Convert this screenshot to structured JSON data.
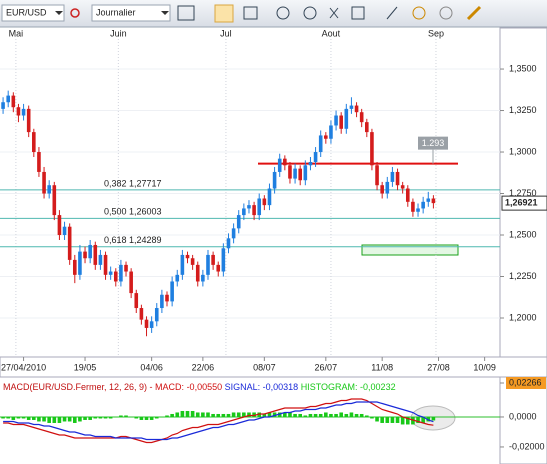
{
  "toolbar": {
    "symbol": "EUR/USD",
    "period": "Journalier"
  },
  "chart_data": [
    {
      "type": "candlestick",
      "up_color": "#1f7fe0",
      "down_color": "#d41c1c",
      "xlim": [
        -0.6,
        97
      ],
      "xticks": [
        {
          "value": 4,
          "label": "27/04/2010"
        },
        {
          "value": 16,
          "label": "19/05"
        },
        {
          "value": 29,
          "label": "04/06"
        },
        {
          "value": 39,
          "label": "22/06"
        },
        {
          "value": 51,
          "label": "08/07"
        },
        {
          "value": 63,
          "label": "26/07"
        },
        {
          "value": 74,
          "label": "11/08"
        },
        {
          "value": 85,
          "label": "27/08"
        },
        {
          "value": 94,
          "label": "10/09"
        }
      ],
      "month_ticks": [
        {
          "value": 2.5,
          "label": "Mai"
        },
        {
          "value": 22.5,
          "label": "Juin"
        },
        {
          "value": 43.5,
          "label": "Jul"
        },
        {
          "value": 64,
          "label": "Aout"
        },
        {
          "value": 84.5,
          "label": "Sep"
        }
      ],
      "ylim": [
        1.1777,
        1.3675
      ],
      "yticks": [
        {
          "value": 1.35,
          "label": "1,3500"
        },
        {
          "value": 1.325,
          "label": "1,3250"
        },
        {
          "value": 1.3,
          "label": "1,3000"
        },
        {
          "value": 1.275,
          "label": "1,2750"
        },
        {
          "value": 1.25,
          "label": "1,2500"
        },
        {
          "value": 1.225,
          "label": "1,2250"
        },
        {
          "value": 1.2,
          "label": "1,2000"
        }
      ],
      "grid": true,
      "last_price": {
        "value": 1.26921,
        "label": "1,26921"
      },
      "fib_levels": [
        {
          "value": 1.27717,
          "label": "0,382 1,27717"
        },
        {
          "value": 1.26003,
          "label": "0,500 1,26003"
        },
        {
          "value": 1.24289,
          "label": "0,618 1,24289"
        }
      ],
      "resistance": {
        "value": 1.293,
        "label": "1.293",
        "color": "#e01010"
      },
      "ohlc": [
        [
          1.326,
          1.333,
          1.323,
          1.33
        ],
        [
          1.33,
          1.337,
          1.327,
          1.334
        ],
        [
          1.334,
          1.336,
          1.324,
          1.327
        ],
        [
          1.327,
          1.329,
          1.318,
          1.322
        ],
        [
          1.322,
          1.329,
          1.319,
          1.326
        ],
        [
          1.326,
          1.328,
          1.309,
          1.312
        ],
        [
          1.312,
          1.314,
          1.297,
          1.3
        ],
        [
          1.3,
          1.303,
          1.285,
          1.288
        ],
        [
          1.288,
          1.291,
          1.272,
          1.275
        ],
        [
          1.275,
          1.283,
          1.272,
          1.28
        ],
        [
          1.28,
          1.282,
          1.259,
          1.262
        ],
        [
          1.262,
          1.265,
          1.247,
          1.25
        ],
        [
          1.25,
          1.258,
          1.247,
          1.255
        ],
        [
          1.255,
          1.257,
          1.232,
          1.235
        ],
        [
          1.235,
          1.238,
          1.221,
          1.226
        ],
        [
          1.226,
          1.244,
          1.223,
          1.24
        ],
        [
          1.24,
          1.243,
          1.233,
          1.236
        ],
        [
          1.236,
          1.247,
          1.233,
          1.244
        ],
        [
          1.244,
          1.246,
          1.229,
          1.232
        ],
        [
          1.232,
          1.241,
          1.229,
          1.238
        ],
        [
          1.238,
          1.24,
          1.223,
          1.226
        ],
        [
          1.226,
          1.231,
          1.223,
          1.228
        ],
        [
          1.228,
          1.23,
          1.219,
          1.222
        ],
        [
          1.222,
          1.235,
          1.219,
          1.232
        ],
        [
          1.232,
          1.234,
          1.225,
          1.228
        ],
        [
          1.228,
          1.23,
          1.212,
          1.215
        ],
        [
          1.215,
          1.217,
          1.203,
          1.206
        ],
        [
          1.206,
          1.208,
          1.196,
          1.199
        ],
        [
          1.199,
          1.201,
          1.189,
          1.194
        ],
        [
          1.194,
          1.201,
          1.191,
          1.198
        ],
        [
          1.198,
          1.209,
          1.195,
          1.206
        ],
        [
          1.206,
          1.217,
          1.203,
          1.214
        ],
        [
          1.214,
          1.216,
          1.207,
          1.21
        ],
        [
          1.21,
          1.225,
          1.207,
          1.222
        ],
        [
          1.222,
          1.229,
          1.219,
          1.226
        ],
        [
          1.226,
          1.241,
          1.223,
          1.238
        ],
        [
          1.238,
          1.24,
          1.233,
          1.236
        ],
        [
          1.236,
          1.238,
          1.229,
          1.232
        ],
        [
          1.232,
          1.234,
          1.219,
          1.222
        ],
        [
          1.222,
          1.229,
          1.219,
          1.226
        ],
        [
          1.226,
          1.241,
          1.223,
          1.238
        ],
        [
          1.238,
          1.24,
          1.229,
          1.232
        ],
        [
          1.232,
          1.234,
          1.225,
          1.228
        ],
        [
          1.228,
          1.245,
          1.225,
          1.242
        ],
        [
          1.242,
          1.251,
          1.239,
          1.248
        ],
        [
          1.248,
          1.257,
          1.245,
          1.254
        ],
        [
          1.254,
          1.265,
          1.251,
          1.262
        ],
        [
          1.262,
          1.269,
          1.259,
          1.266
        ],
        [
          1.266,
          1.271,
          1.263,
          1.268
        ],
        [
          1.268,
          1.27,
          1.259,
          1.262
        ],
        [
          1.262,
          1.275,
          1.259,
          1.272
        ],
        [
          1.272,
          1.274,
          1.265,
          1.268
        ],
        [
          1.268,
          1.281,
          1.265,
          1.278
        ],
        [
          1.278,
          1.291,
          1.275,
          1.288
        ],
        [
          1.288,
          1.299,
          1.285,
          1.296
        ],
        [
          1.296,
          1.298,
          1.289,
          1.292
        ],
        [
          1.292,
          1.294,
          1.281,
          1.284
        ],
        [
          1.284,
          1.293,
          1.281,
          1.29
        ],
        [
          1.29,
          1.292,
          1.28,
          1.283
        ],
        [
          1.283,
          1.295,
          1.28,
          1.292
        ],
        [
          1.292,
          1.297,
          1.289,
          1.294
        ],
        [
          1.294,
          1.303,
          1.291,
          1.3
        ],
        [
          1.3,
          1.313,
          1.297,
          1.31
        ],
        [
          1.31,
          1.312,
          1.305,
          1.308
        ],
        [
          1.308,
          1.319,
          1.305,
          1.316
        ],
        [
          1.316,
          1.325,
          1.313,
          1.322
        ],
        [
          1.322,
          1.324,
          1.311,
          1.314
        ],
        [
          1.314,
          1.329,
          1.311,
          1.326
        ],
        [
          1.326,
          1.333,
          1.323,
          1.328
        ],
        [
          1.328,
          1.33,
          1.321,
          1.324
        ],
        [
          1.324,
          1.326,
          1.315,
          1.318
        ],
        [
          1.318,
          1.32,
          1.309,
          1.312
        ],
        [
          1.312,
          1.314,
          1.289,
          1.292
        ],
        [
          1.292,
          1.294,
          1.277,
          1.28
        ],
        [
          1.28,
          1.282,
          1.272,
          1.275
        ],
        [
          1.275,
          1.285,
          1.272,
          1.282
        ],
        [
          1.282,
          1.291,
          1.279,
          1.288
        ],
        [
          1.288,
          1.29,
          1.277,
          1.28
        ],
        [
          1.28,
          1.282,
          1.275,
          1.278
        ],
        [
          1.278,
          1.28,
          1.267,
          1.27
        ],
        [
          1.27,
          1.272,
          1.261,
          1.264
        ],
        [
          1.264,
          1.269,
          1.261,
          1.266
        ],
        [
          1.266,
          1.273,
          1.263,
          1.27
        ],
        [
          1.27,
          1.276,
          1.267,
          1.272
        ],
        [
          1.272,
          1.274,
          1.266,
          1.26921
        ]
      ]
    },
    {
      "type": "macd",
      "title": "MACD(EUR/USD.Fermer, 12, 26, 9) -",
      "title_color": "#c01010",
      "xlim": [
        -0.6,
        97
      ],
      "ylim": [
        -0.0287,
        0.026
      ],
      "yticks": [
        {
          "value": 0.02266,
          "label": "0,02266"
        },
        {
          "value": 0,
          "label": "0,0000"
        },
        {
          "value": -0.02,
          "label": "-0,02000"
        }
      ],
      "series": [
        {
          "name": "MACD:",
          "last_label": "-0,00550",
          "color": "#d01010",
          "values": [
            -0.004,
            -0.004,
            -0.005,
            -0.005,
            -0.005,
            -0.006,
            -0.007,
            -0.008,
            -0.009,
            -0.01,
            -0.011,
            -0.012,
            -0.012,
            -0.013,
            -0.014,
            -0.014,
            -0.014,
            -0.014,
            -0.014,
            -0.014,
            -0.014,
            -0.014,
            -0.014,
            -0.013,
            -0.013,
            -0.014,
            -0.015,
            -0.016,
            -0.017,
            -0.017,
            -0.016,
            -0.015,
            -0.014,
            -0.012,
            -0.011,
            -0.009,
            -0.008,
            -0.007,
            -0.007,
            -0.006,
            -0.005,
            -0.005,
            -0.005,
            -0.004,
            -0.003,
            -0.002,
            -0.001,
            0.0,
            0.001,
            0.001,
            0.002,
            0.002,
            0.003,
            0.004,
            0.005,
            0.006,
            0.006,
            0.006,
            0.006,
            0.006,
            0.007,
            0.007,
            0.008,
            0.009,
            0.009,
            0.01,
            0.011,
            0.011,
            0.012,
            0.012,
            0.012,
            0.011,
            0.009,
            0.007,
            0.005,
            0.004,
            0.003,
            0.002,
            0.0,
            -0.001,
            -0.002,
            -0.003,
            -0.004,
            -0.005,
            -0.0055
          ]
        },
        {
          "name": "SIGNAL:",
          "last_label": "-0,00318",
          "color": "#1a2ad8",
          "values": [
            -0.003,
            -0.003,
            -0.003,
            -0.004,
            -0.004,
            -0.004,
            -0.005,
            -0.005,
            -0.006,
            -0.006,
            -0.007,
            -0.008,
            -0.009,
            -0.01,
            -0.01,
            -0.011,
            -0.012,
            -0.012,
            -0.013,
            -0.013,
            -0.013,
            -0.013,
            -0.014,
            -0.014,
            -0.014,
            -0.014,
            -0.014,
            -0.014,
            -0.015,
            -0.015,
            -0.015,
            -0.015,
            -0.015,
            -0.014,
            -0.014,
            -0.013,
            -0.012,
            -0.011,
            -0.01,
            -0.009,
            -0.008,
            -0.007,
            -0.007,
            -0.006,
            -0.005,
            -0.005,
            -0.004,
            -0.003,
            -0.002,
            -0.002,
            -0.001,
            0.0,
            0.0,
            0.001,
            0.002,
            0.003,
            0.003,
            0.004,
            0.004,
            0.005,
            0.005,
            0.005,
            0.006,
            0.006,
            0.007,
            0.008,
            0.008,
            0.009,
            0.009,
            0.01,
            0.01,
            0.01,
            0.01,
            0.01,
            0.009,
            0.008,
            0.007,
            0.006,
            0.005,
            0.004,
            0.003,
            0.001,
            0.0,
            -0.002,
            -0.00318
          ]
        },
        {
          "name": "HISTOGRAM:",
          "last_label": "-0,00232",
          "color": "#18c818",
          "values": [
            -0.001,
            -0.001,
            -0.002,
            -0.001,
            -0.001,
            -0.002,
            -0.002,
            -0.003,
            -0.003,
            -0.004,
            -0.004,
            -0.004,
            -0.003,
            -0.003,
            -0.004,
            -0.003,
            -0.002,
            -0.002,
            -0.001,
            -0.001,
            -0.001,
            -0.001,
            0.0,
            0.001,
            0.001,
            0.0,
            -0.001,
            -0.002,
            -0.002,
            -0.002,
            -0.001,
            0.0,
            0.001,
            0.002,
            0.003,
            0.004,
            0.004,
            0.004,
            0.003,
            0.003,
            0.003,
            0.002,
            0.002,
            0.002,
            0.002,
            0.003,
            0.003,
            0.003,
            0.003,
            0.003,
            0.003,
            0.002,
            0.003,
            0.003,
            0.003,
            0.003,
            0.003,
            0.002,
            0.002,
            0.001,
            0.002,
            0.002,
            0.002,
            0.003,
            0.002,
            0.002,
            0.003,
            0.002,
            0.003,
            0.002,
            0.002,
            0.001,
            -0.001,
            -0.003,
            -0.004,
            -0.004,
            -0.004,
            -0.004,
            -0.005,
            -0.005,
            -0.005,
            -0.004,
            -0.004,
            -0.003,
            -0.00232
          ]
        }
      ]
    }
  ]
}
